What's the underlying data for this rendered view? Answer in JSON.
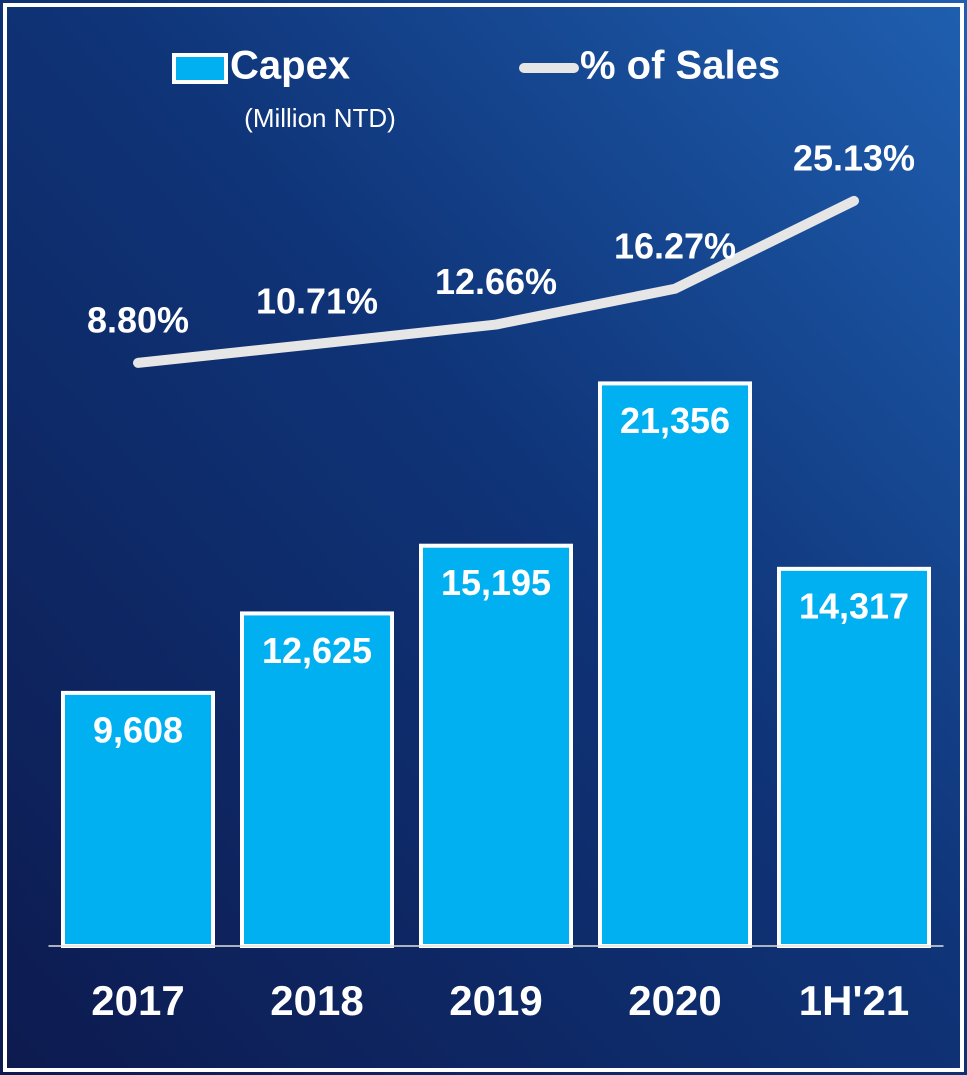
{
  "chart_data": {
    "type": "bar",
    "categories": [
      "2017",
      "2018",
      "2019",
      "2020",
      "1H'21"
    ],
    "y_label": "(Million NTD)",
    "series": [
      {
        "name": "Capex",
        "type": "bar",
        "color": "#00b0f0",
        "values": [
          9608,
          12625,
          15195,
          21356,
          14317
        ],
        "value_labels": [
          "9,608",
          "12,625",
          "15,195",
          "21,356",
          "14,317"
        ]
      },
      {
        "name": "% of Sales",
        "type": "line",
        "axis": "y2",
        "color": "#e6e6e6",
        "values": [
          8.8,
          10.71,
          12.66,
          16.27,
          25.13
        ],
        "value_labels": [
          "8.80%",
          "10.71%",
          "12.66%",
          "16.27%",
          "25.13%"
        ]
      }
    ],
    "ylim": [
      0,
      32000
    ],
    "y2lim": [
      -50,
      35
    ],
    "grid": false
  }
}
